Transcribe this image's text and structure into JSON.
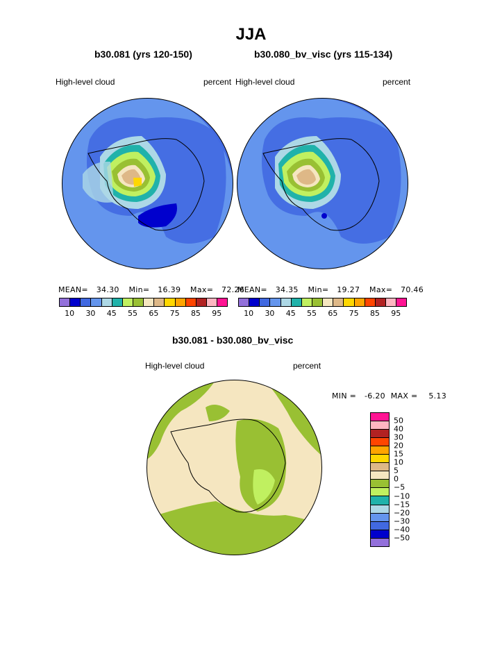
{
  "title": "JJA",
  "panels": [
    {
      "subtitle": "b30.081 (yrs 120-150)",
      "left_label": "High-level cloud",
      "right_label": "percent",
      "stats": {
        "mean_label": "MEAN=",
        "mean": "34.30",
        "min_label": "Min=",
        "min": "16.39",
        "max_label": "Max=",
        "max": "72.26"
      }
    },
    {
      "subtitle": "b30.080_bv_visc (yrs 115-134)",
      "left_label": "High-level cloud",
      "right_label": "percent",
      "stats": {
        "mean_label": "MEAN=",
        "mean": "34.35",
        "min_label": "Min=",
        "min": "19.27",
        "max_label": "Max=",
        "max": "70.46"
      }
    }
  ],
  "colorbar_top": {
    "colors": [
      "#9370db",
      "#0000cd",
      "#4169e1",
      "#6495ed",
      "#add8e6",
      "#20b2aa",
      "#c0f060",
      "#99c033",
      "#f5e6c0",
      "#deb887",
      "#ffd700",
      "#ffa500",
      "#ff4500",
      "#b22222",
      "#ffb6c1",
      "#ff1493"
    ],
    "tick_labels": [
      "10",
      "30",
      "45",
      "55",
      "65",
      "75",
      "85",
      "95"
    ]
  },
  "difference": {
    "subtitle": "b30.081 - b30.080_bv_visc",
    "left_label": "High-level cloud",
    "right_label": "percent",
    "min_label": "MIN =",
    "min": "-6.20",
    "max_label": "MAX =",
    "max": "5.13",
    "colorbar": {
      "colors": [
        "#ff1493",
        "#ffb6c1",
        "#b22222",
        "#ff4500",
        "#ffa500",
        "#ffd700",
        "#deb887",
        "#f5e6c0",
        "#99c033",
        "#c0f060",
        "#20b2aa",
        "#add8e6",
        "#6495ed",
        "#4169e1",
        "#0000cd",
        "#9370db"
      ],
      "tick_labels": [
        "50",
        "40",
        "30",
        "20",
        "15",
        "10",
        "5",
        "0",
        "−5",
        "−10",
        "−15",
        "−20",
        "−30",
        "−40",
        "−50"
      ]
    }
  }
}
